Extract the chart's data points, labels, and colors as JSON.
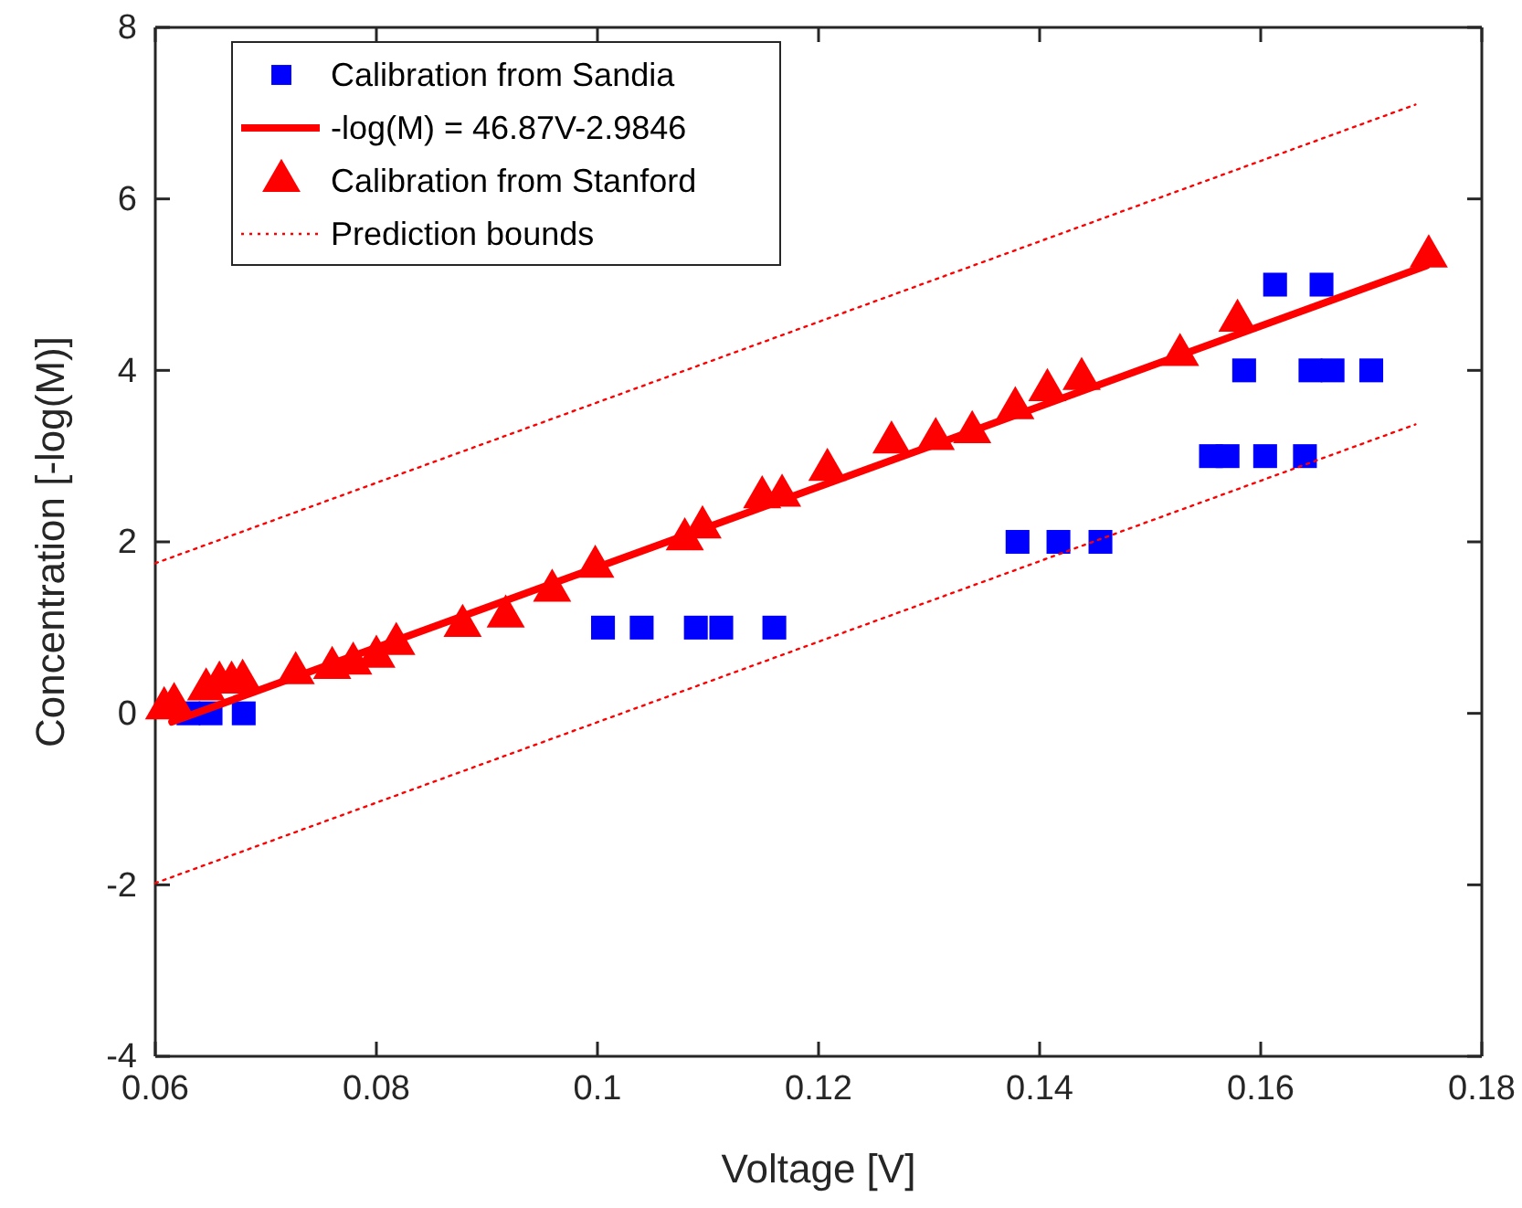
{
  "chart_data": {
    "type": "scatter",
    "xlabel": "Voltage [V]",
    "ylabel": "Concentration [-log(M)]",
    "xlim": [
      0.06,
      0.18
    ],
    "ylim": [
      -4,
      8
    ],
    "xticks": [
      0.06,
      0.08,
      0.1,
      0.12,
      0.14,
      0.16,
      0.18
    ],
    "yticks": [
      -4,
      -2,
      0,
      2,
      4,
      6,
      8
    ],
    "grid": false,
    "legend": "top left",
    "series": [
      {
        "name": "Calibration from Sandia",
        "marker": "square",
        "color": "#0000ff",
        "x": [
          0.063,
          0.065,
          0.068,
          0.1005,
          0.104,
          0.1089,
          0.1112,
          0.116,
          0.138,
          0.1417,
          0.1455,
          0.1555,
          0.157,
          0.1604,
          0.164,
          0.1585,
          0.1645,
          0.1665,
          0.17,
          0.1613,
          0.1655
        ],
        "values": [
          0,
          0,
          0,
          1,
          1,
          1,
          1,
          1,
          2,
          2,
          2,
          3,
          3,
          3,
          3,
          4,
          4,
          4,
          4,
          5,
          5
        ]
      },
      {
        "name": "-log(M) = 46.87V-2.9846",
        "type": "line",
        "marker": "none",
        "line_style": "solid",
        "color": "#ff0000",
        "x": [
          0.0615,
          0.175
        ],
        "values": [
          -0.1,
          5.22
        ]
      },
      {
        "name": "Calibration from Stanford",
        "marker": "triangle",
        "color": "#ff0000",
        "x": [
          0.0608,
          0.0617,
          0.0646,
          0.0658,
          0.0669,
          0.0679,
          0.0727,
          0.076,
          0.0779,
          0.08,
          0.0818,
          0.0878,
          0.0917,
          0.0959,
          0.0998,
          0.1079,
          0.1095,
          0.1149,
          0.1167,
          0.1208,
          0.1266,
          0.1306,
          0.1339,
          0.1378,
          0.1407,
          0.1438,
          0.1527,
          0.1579,
          0.1752
        ],
        "values": [
          0.06,
          0.11,
          0.28,
          0.36,
          0.36,
          0.38,
          0.47,
          0.53,
          0.58,
          0.66,
          0.81,
          1.02,
          1.13,
          1.43,
          1.71,
          2.03,
          2.17,
          2.52,
          2.54,
          2.84,
          3.16,
          3.2,
          3.28,
          3.56,
          3.77,
          3.9,
          4.18,
          4.58,
          5.33
        ]
      },
      {
        "name": "Prediction bounds",
        "type": "line",
        "marker": "none",
        "line_style": "dotted",
        "color": "#ff0000",
        "x": [
          0.06,
          0.174
        ],
        "values": [
          1.75,
          7.1
        ]
      },
      {
        "type": "line",
        "marker": "none",
        "line_style": "dotted",
        "color": "#ff0000",
        "x": [
          0.06,
          0.174
        ],
        "values": [
          -1.98,
          3.37
        ]
      }
    ]
  }
}
